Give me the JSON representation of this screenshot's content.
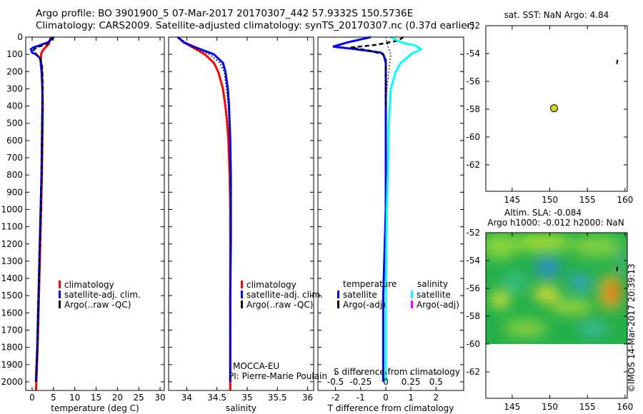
{
  "title": {
    "line1": "Argo profile: BO 3901900_5 07-Mar-2017 20170307_442 57.9332S 150.5736E",
    "line2": "Climatology: CARS2009. Satellite-adjusted climatology: synTS_20170307.nc (0.37d earlier)"
  },
  "colors": {
    "climatology": "#ff0000",
    "satellite": "#0000ff",
    "argo": "#000000",
    "salinity_sat": "#00ffff",
    "salinity_argo": "#ff00ff",
    "float_marker": "#c8d820"
  },
  "credit": "©IMOS 14-Mar-2017 20:39:13",
  "chart_data": [
    {
      "id": "temperature",
      "type": "line",
      "xlabel": "temperature (deg C)",
      "xlim": [
        -1.5,
        31
      ],
      "xticks": [
        0,
        5,
        10,
        15,
        20,
        25,
        30
      ],
      "ylim": [
        2050,
        0
      ],
      "yticks": [
        0,
        100,
        200,
        300,
        400,
        500,
        600,
        700,
        800,
        900,
        1000,
        1100,
        1200,
        1300,
        1400,
        1500,
        1600,
        1700,
        1800,
        1900,
        2000
      ],
      "legend": [
        "climatology",
        "satellite-adj. clim.",
        "Argo(..raw -QC)"
      ],
      "series": [
        {
          "name": "climatology",
          "color": "#ff0000",
          "depth": [
            0,
            40,
            60,
            80,
            100,
            150,
            200,
            300,
            400,
            600,
            800,
            1000,
            1200,
            1500,
            1800,
            2000,
            2050
          ],
          "values": [
            4.4,
            3.9,
            3.1,
            2.4,
            2.1,
            2.0,
            2.2,
            2.4,
            2.5,
            2.4,
            2.3,
            2.1,
            1.9,
            1.6,
            1.3,
            1.0,
            0.9
          ]
        },
        {
          "name": "satellite-adj. clim.",
          "color": "#0000ff",
          "depth": [
            0,
            30,
            50,
            60,
            70,
            90,
            100,
            120,
            150,
            200,
            300,
            400,
            600,
            800,
            1000,
            1200,
            1500,
            1800,
            2000
          ],
          "values": [
            4.8,
            3.8,
            1.5,
            0.3,
            -0.3,
            0.0,
            0.9,
            1.8,
            2.1,
            2.3,
            2.4,
            2.4,
            2.3,
            2.2,
            2.0,
            1.8,
            1.5,
            1.2,
            0.9
          ]
        },
        {
          "name": "Argo(..raw -QC)",
          "color": "#000000",
          "depth": [
            0,
            20,
            40,
            60,
            80,
            100,
            130,
            160,
            200,
            300,
            400,
            600,
            800,
            1000,
            1200,
            1500,
            1800,
            2000
          ],
          "values": [
            5.1,
            4.4,
            3.5,
            1.0,
            0.2,
            1.0,
            2.0,
            2.3,
            2.4,
            2.5,
            2.4,
            2.3,
            2.2,
            2.0,
            1.8,
            1.5,
            1.2,
            0.9
          ],
          "dashed": true
        }
      ]
    },
    {
      "id": "salinity",
      "type": "line",
      "xlabel": "salinity",
      "xlim": [
        33.7,
        36.1
      ],
      "xticks": [
        34,
        34.5,
        35,
        35.5,
        36
      ],
      "ylim": [
        2050,
        0
      ],
      "legend": [
        "climatology",
        "satellite-adj. clim.",
        "Argo(..raw -QC)"
      ],
      "annotation": [
        "MOCCA-EU",
        "PI: Pierre-Marie Poulain"
      ],
      "series": [
        {
          "name": "climatology",
          "color": "#ff0000",
          "depth": [
            0,
            30,
            60,
            100,
            150,
            200,
            300,
            400,
            500,
            600,
            800,
            1000,
            1200,
            1500,
            2000,
            2050
          ],
          "values": [
            33.85,
            33.95,
            34.1,
            34.3,
            34.45,
            34.52,
            34.6,
            34.64,
            34.67,
            34.69,
            34.71,
            34.72,
            34.72,
            34.72,
            34.72,
            34.72
          ]
        },
        {
          "name": "satellite-adj. clim.",
          "color": "#0000ff",
          "depth": [
            0,
            30,
            60,
            100,
            150,
            200,
            300,
            400,
            500,
            600,
            800,
            1000,
            1200,
            1500,
            2000
          ],
          "values": [
            33.85,
            33.95,
            34.15,
            34.45,
            34.6,
            34.64,
            34.68,
            34.7,
            34.71,
            34.72,
            34.73,
            34.73,
            34.73,
            34.72,
            34.72
          ]
        },
        {
          "name": "Argo(..raw -QC)",
          "color": "#000000",
          "depth": [
            0,
            30,
            60,
            100,
            150,
            200,
            300,
            400,
            500,
            600,
            800,
            1000,
            1200,
            1500,
            2000
          ],
          "values": [
            33.85,
            33.98,
            34.12,
            34.38,
            34.55,
            34.62,
            34.66,
            34.69,
            34.7,
            34.71,
            34.72,
            34.73,
            34.73,
            34.72,
            34.72
          ],
          "dotted": true
        }
      ]
    },
    {
      "id": "difference",
      "type": "line",
      "xlabel": "T difference from climatology",
      "xlabel_top": "S difference from climatology",
      "xlim": [
        -2.7,
        3.1
      ],
      "xticks": [
        -2,
        -1,
        0,
        1,
        2
      ],
      "xticks_top": [
        -0.5,
        -0.25,
        0,
        0.25,
        0.5
      ],
      "ylim": [
        2050,
        0
      ],
      "legend_headers": [
        "temperature",
        "salinity"
      ],
      "legend": [
        "satellite",
        "Argo(-adj)",
        "satellite",
        "Argo(-adj)"
      ],
      "series": [
        {
          "name": "T satellite",
          "color": "#0000ff",
          "depth": [
            0,
            30,
            55,
            70,
            90,
            100,
            120,
            150,
            200,
            300,
            500,
            800,
            1000,
            1500,
            2000
          ],
          "values": [
            -0.6,
            -1.5,
            -2.1,
            -1.2,
            -0.2,
            -0.1,
            -0.05,
            0.0,
            0.0,
            0.0,
            0.0,
            0.0,
            0.0,
            -0.1,
            -0.1
          ]
        },
        {
          "name": "T Argo(-adj)",
          "color": "#000000",
          "depth": [
            0,
            20,
            45,
            60,
            80,
            100,
            130,
            200,
            400
          ],
          "values": [
            0.7,
            0.5,
            -0.4,
            -1.4,
            -0.6,
            -0.1,
            0.0,
            0.0,
            0.0
          ],
          "dashed": true
        },
        {
          "name": "S satellite",
          "color": "#00ffff",
          "depth": [
            0,
            30,
            50,
            70,
            100,
            150,
            200,
            300,
            500,
            800,
            1000,
            1500,
            2000
          ],
          "values": [
            0.05,
            0.15,
            0.3,
            0.35,
            0.25,
            0.15,
            0.1,
            0.05,
            0.03,
            0.02,
            0.01,
            0.0,
            0.0
          ]
        },
        {
          "name": "S Argo(-adj)",
          "color": "#000000",
          "depth": [
            0,
            50,
            100,
            200,
            300,
            400
          ],
          "values": [
            0.0,
            0.02,
            0.05,
            0.03,
            0.01,
            0.0
          ],
          "dotted": true
        }
      ]
    },
    {
      "id": "sst_map",
      "type": "scatter",
      "title": "sat. SST: NaN Argo: 4.84",
      "xlim": [
        141.5,
        160.3
      ],
      "ylim": [
        -63.9,
        -52
      ],
      "xticks": [
        145,
        150,
        155,
        160
      ],
      "yticks": [
        -52,
        -54,
        -56,
        -58,
        -60,
        -62
      ],
      "points": [
        {
          "x": 150.57,
          "y": -57.93,
          "label": "float position"
        }
      ]
    },
    {
      "id": "sla_map",
      "type": "heatmap",
      "title_line1": "Altim. SLA: -0.084",
      "title_line2": "Argo h1000: -0.012 h2000: NaN",
      "xlim": [
        141.5,
        160.3
      ],
      "ylim": [
        -63.9,
        -52
      ],
      "xticks": [
        145,
        150,
        155,
        160
      ],
      "yticks": [
        -52,
        -54,
        -56,
        -58,
        -60,
        -62
      ],
      "data_extent": {
        "x": [
          141.5,
          160.3
        ],
        "y": [
          -60,
          -52
        ]
      },
      "points": [
        {
          "x": 150.57,
          "y": -57.93,
          "label": "float position"
        }
      ]
    }
  ]
}
